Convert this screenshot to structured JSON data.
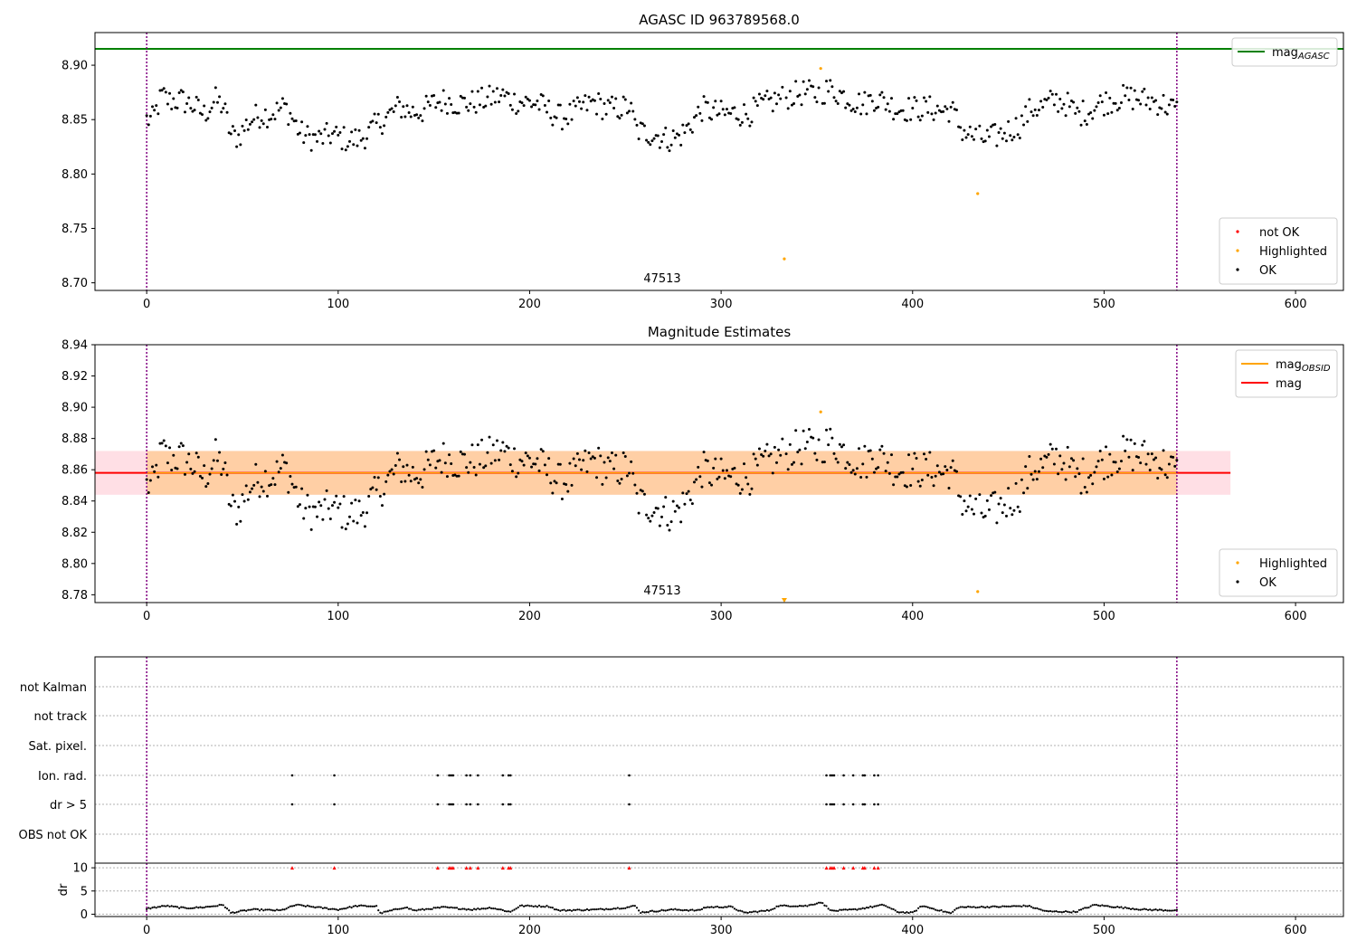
{
  "chart_data": [
    {
      "type": "scatter",
      "title": "AGASC ID 963789568.0",
      "xlim": [
        -27,
        625
      ],
      "ylim": [
        8.693,
        8.93
      ],
      "xticks": [
        0,
        100,
        200,
        300,
        400,
        500,
        600
      ],
      "yticks": [
        8.7,
        8.75,
        8.8,
        8.85,
        8.9
      ],
      "hlines": [
        {
          "name": "mag_AGASC",
          "value": 8.915,
          "color": "#008000"
        }
      ],
      "vlines": [
        0,
        538
      ],
      "annotation": "47513",
      "legends": [
        {
          "position": "top-right",
          "entries": [
            {
              "label": "mag",
              "sub": "AGASC",
              "color": "#008000",
              "kind": "line"
            }
          ]
        },
        {
          "position": "bottom-right",
          "entries": [
            {
              "label": "not OK",
              "color": "#ff0000",
              "kind": "dot"
            },
            {
              "label": "Highlighted",
              "color": "#ffa500",
              "kind": "dot"
            },
            {
              "label": "OK",
              "color": "#000000",
              "kind": "dot"
            }
          ]
        }
      ],
      "highlighted": [
        [
          333,
          8.722
        ],
        [
          352,
          8.897
        ],
        [
          434,
          8.782
        ]
      ],
      "ok_keypoints": [
        [
          0,
          8.85
        ],
        [
          3,
          8.85
        ],
        [
          8,
          8.872
        ],
        [
          12,
          8.867
        ],
        [
          18,
          8.868
        ],
        [
          25,
          8.862
        ],
        [
          30,
          8.855
        ],
        [
          36,
          8.868
        ],
        [
          40,
          8.862
        ],
        [
          44,
          8.836
        ],
        [
          48,
          8.834
        ],
        [
          52,
          8.845
        ],
        [
          56,
          8.852
        ],
        [
          60,
          8.855
        ],
        [
          64,
          8.855
        ],
        [
          68,
          8.858
        ],
        [
          72,
          8.862
        ],
        [
          76,
          8.852
        ],
        [
          80,
          8.838
        ],
        [
          84,
          8.834
        ],
        [
          90,
          8.832
        ],
        [
          96,
          8.836
        ],
        [
          100,
          8.834
        ],
        [
          106,
          8.831
        ],
        [
          112,
          8.833
        ],
        [
          116,
          8.838
        ],
        [
          120,
          8.845
        ],
        [
          126,
          8.853
        ],
        [
          132,
          8.862
        ],
        [
          138,
          8.857
        ],
        [
          144,
          8.858
        ],
        [
          150,
          8.865
        ],
        [
          156,
          8.868
        ],
        [
          162,
          8.865
        ],
        [
          168,
          8.865
        ],
        [
          174,
          8.867
        ],
        [
          180,
          8.87
        ],
        [
          186,
          8.872
        ],
        [
          192,
          8.867
        ],
        [
          198,
          8.866
        ],
        [
          204,
          8.865
        ],
        [
          210,
          8.858
        ],
        [
          216,
          8.852
        ],
        [
          222,
          8.855
        ],
        [
          228,
          8.862
        ],
        [
          234,
          8.866
        ],
        [
          240,
          8.86
        ],
        [
          246,
          8.86
        ],
        [
          252,
          8.862
        ],
        [
          256,
          8.84
        ],
        [
          260,
          8.838
        ],
        [
          266,
          8.836
        ],
        [
          272,
          8.832
        ],
        [
          278,
          8.834
        ],
        [
          284,
          8.845
        ],
        [
          290,
          8.86
        ],
        [
          296,
          8.857
        ],
        [
          302,
          8.855
        ],
        [
          308,
          8.856
        ],
        [
          314,
          8.855
        ],
        [
          320,
          8.862
        ],
        [
          326,
          8.866
        ],
        [
          332,
          8.87
        ],
        [
          338,
          8.873
        ],
        [
          344,
          8.875
        ],
        [
          350,
          8.873
        ],
        [
          356,
          8.878
        ],
        [
          362,
          8.874
        ],
        [
          368,
          8.868
        ],
        [
          374,
          8.864
        ],
        [
          380,
          8.87
        ],
        [
          386,
          8.866
        ],
        [
          392,
          8.86
        ],
        [
          398,
          8.86
        ],
        [
          404,
          8.86
        ],
        [
          410,
          8.86
        ],
        [
          416,
          8.858
        ],
        [
          420,
          8.86
        ],
        [
          426,
          8.84
        ],
        [
          432,
          8.834
        ],
        [
          438,
          8.832
        ],
        [
          444,
          8.835
        ],
        [
          450,
          8.84
        ],
        [
          456,
          8.845
        ],
        [
          462,
          8.86
        ],
        [
          468,
          8.862
        ],
        [
          474,
          8.868
        ],
        [
          480,
          8.865
        ],
        [
          486,
          8.855
        ],
        [
          492,
          8.858
        ],
        [
          498,
          8.865
        ],
        [
          504,
          8.868
        ],
        [
          510,
          8.87
        ],
        [
          516,
          8.87
        ],
        [
          522,
          8.868
        ],
        [
          528,
          8.866
        ],
        [
          534,
          8.862
        ],
        [
          538,
          8.858
        ]
      ]
    },
    {
      "type": "scatter",
      "title": "Magnitude Estimates",
      "xlim": [
        -27,
        625
      ],
      "ylim": [
        8.775,
        8.94
      ],
      "xticks": [
        0,
        100,
        200,
        300,
        400,
        500,
        600
      ],
      "yticks": [
        8.78,
        8.8,
        8.82,
        8.84,
        8.86,
        8.88,
        8.9,
        8.92,
        8.94
      ],
      "mag": 8.858,
      "band_outer": [
        8.844,
        8.872,
        566
      ],
      "band_inner": [
        8.844,
        8.872,
        538
      ],
      "vlines": [
        0,
        538
      ],
      "annotation": "47513",
      "legends": [
        {
          "position": "top-right",
          "entries": [
            {
              "label": "mag",
              "sub": "OBSID",
              "color": "#ffa500",
              "kind": "line"
            },
            {
              "label": "mag",
              "sub": "",
              "color": "#ff0000",
              "kind": "line"
            }
          ]
        },
        {
          "position": "bottom-right",
          "entries": [
            {
              "label": "Highlighted",
              "color": "#ffa500",
              "kind": "dot"
            },
            {
              "label": "OK",
              "color": "#000000",
              "kind": "dot"
            }
          ]
        }
      ],
      "highlighted": [
        [
          333,
          8.777
        ],
        [
          352,
          8.897
        ],
        [
          434,
          8.782
        ]
      ]
    },
    {
      "type": "scatter",
      "title": "",
      "xlim": [
        -27,
        625
      ],
      "xticks": [
        0,
        100,
        200,
        300,
        400,
        500,
        600
      ],
      "flag_rows": [
        "not Kalman",
        "not track",
        "Sat. pixel.",
        "Ion. rad.",
        "dr > 5",
        "OBS not OK"
      ],
      "flag_times": [
        76,
        98,
        152,
        158,
        159,
        160,
        167,
        169,
        173,
        186,
        189,
        190,
        252,
        355,
        357,
        358,
        359,
        364,
        369,
        374,
        375,
        380,
        382
      ],
      "flagged_rows": [
        "Ion. rad.",
        "dr > 5"
      ],
      "dr": {
        "ylabel": "dr",
        "ylim": [
          -0.5,
          11
        ],
        "yticks": [
          0,
          5,
          10
        ],
        "clip_value": 10,
        "outlier_color": "#ff0000",
        "keypoints": [
          [
            0,
            1.2
          ],
          [
            10,
            1.8
          ],
          [
            20,
            1.3
          ],
          [
            30,
            1.5
          ],
          [
            40,
            2.0
          ],
          [
            44,
            0.3
          ],
          [
            55,
            1.0
          ],
          [
            70,
            0.8
          ],
          [
            78,
            2.0
          ],
          [
            95,
            1.2
          ],
          [
            100,
            1.0
          ],
          [
            110,
            1.8
          ],
          [
            120,
            1.7
          ],
          [
            122,
            0.2
          ],
          [
            135,
            1.5
          ],
          [
            140,
            0.8
          ],
          [
            155,
            1.5
          ],
          [
            170,
            1.0
          ],
          [
            180,
            1.4
          ],
          [
            190,
            0.5
          ],
          [
            195,
            1.8
          ],
          [
            210,
            1.7
          ],
          [
            215,
            0.8
          ],
          [
            235,
            1.0
          ],
          [
            250,
            1.4
          ],
          [
            255,
            1.8
          ],
          [
            258,
            0.4
          ],
          [
            275,
            1.0
          ],
          [
            288,
            0.8
          ],
          [
            292,
            1.5
          ],
          [
            305,
            1.6
          ],
          [
            312,
            0.3
          ],
          [
            325,
            0.8
          ],
          [
            330,
            1.8
          ],
          [
            345,
            1.8
          ],
          [
            352,
            2.6
          ],
          [
            358,
            0.7
          ],
          [
            370,
            1.0
          ],
          [
            385,
            2.0
          ],
          [
            392,
            0.5
          ],
          [
            400,
            0.3
          ],
          [
            405,
            1.8
          ],
          [
            420,
            0.2
          ],
          [
            424,
            1.5
          ],
          [
            445,
            1.6
          ],
          [
            460,
            1.8
          ],
          [
            470,
            0.6
          ],
          [
            485,
            0.5
          ],
          [
            495,
            2.0
          ],
          [
            505,
            1.6
          ],
          [
            520,
            1.0
          ],
          [
            538,
            0.8
          ]
        ]
      }
    }
  ]
}
